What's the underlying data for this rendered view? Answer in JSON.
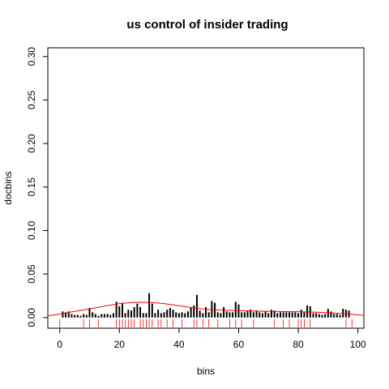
{
  "chart_data": {
    "type": "bar",
    "title": "us control of insider trading",
    "xlabel": "bins",
    "ylabel": "docbins",
    "xlim": [
      -4,
      102
    ],
    "ylim": [
      -0.0123,
      0.31
    ],
    "x_ticks": [
      0,
      20,
      40,
      60,
      80,
      100
    ],
    "x_tick_labels": [
      "0",
      "20",
      "40",
      "60",
      "80",
      "100"
    ],
    "y_ticks": [
      0.0,
      0.05,
      0.1,
      0.15,
      0.2,
      0.25,
      0.3
    ],
    "y_tick_labels": [
      "0.00",
      "0.05",
      "0.10",
      "0.15",
      "0.20",
      "0.25",
      "0.30"
    ],
    "grid": false,
    "series": [
      {
        "style": "histogram-spikes",
        "color": "#000000",
        "x": [
          1,
          2,
          3,
          4,
          5,
          6,
          7,
          8,
          9,
          10,
          11,
          12,
          13,
          14,
          15,
          16,
          17,
          18,
          19,
          20,
          21,
          22,
          23,
          24,
          25,
          26,
          27,
          28,
          29,
          30,
          31,
          32,
          33,
          34,
          35,
          36,
          37,
          38,
          39,
          40,
          41,
          42,
          43,
          44,
          45,
          46,
          47,
          48,
          49,
          50,
          51,
          52,
          53,
          54,
          55,
          56,
          57,
          58,
          59,
          60,
          61,
          62,
          63,
          64,
          65,
          66,
          67,
          68,
          69,
          70,
          71,
          72,
          73,
          74,
          75,
          76,
          77,
          78,
          79,
          80,
          81,
          82,
          83,
          84,
          85,
          86,
          87,
          88,
          89,
          90,
          91,
          92,
          93,
          94,
          95,
          96,
          97
        ],
        "values": [
          0.007,
          0.006,
          0.007,
          0.004,
          0.003,
          0.003,
          0.002,
          0.004,
          0.003,
          0.011,
          0.006,
          0.004,
          0.002,
          0.004,
          0.004,
          0.004,
          0.003,
          0.005,
          0.018,
          0.013,
          0.017,
          0.005,
          0.009,
          0.008,
          0.012,
          0.016,
          0.012,
          0.005,
          0.005,
          0.028,
          0.016,
          0.005,
          0.009,
          0.005,
          0.006,
          0.009,
          0.011,
          0.009,
          0.006,
          0.005,
          0.006,
          0.005,
          0.007,
          0.012,
          0.014,
          0.026,
          0.008,
          0.005,
          0.012,
          0.006,
          0.019,
          0.017,
          0.006,
          0.005,
          0.012,
          0.007,
          0.006,
          0.006,
          0.018,
          0.015,
          0.006,
          0.006,
          0.008,
          0.009,
          0.006,
          0.008,
          0.006,
          0.005,
          0.007,
          0.005,
          0.009,
          0.008,
          0.005,
          0.006,
          0.006,
          0.006,
          0.006,
          0.006,
          0.006,
          0.005,
          0.009,
          0.006,
          0.014,
          0.013,
          0.005,
          0.005,
          0.004,
          0.003,
          0.004,
          0.01,
          0.007,
          0.004,
          0.004,
          0.003,
          0.01,
          0.009,
          0.008
        ]
      },
      {
        "style": "smooth-curve",
        "color": "#ff0000",
        "x": [
          -4,
          0,
          5,
          10,
          15,
          20,
          25,
          30,
          35,
          40,
          45,
          50,
          55,
          60,
          65,
          70,
          75,
          80,
          85,
          90,
          95,
          102
        ],
        "values": [
          0.002,
          0.004,
          0.007,
          0.01,
          0.013,
          0.016,
          0.0175,
          0.0175,
          0.016,
          0.0135,
          0.011,
          0.009,
          0.0085,
          0.008,
          0.0075,
          0.007,
          0.0068,
          0.0067,
          0.0062,
          0.0055,
          0.0045,
          0.0025
        ]
      },
      {
        "style": "rug",
        "color": "#ff0000",
        "x": [
          0,
          8,
          10,
          13,
          19,
          20,
          21,
          22,
          23,
          24,
          25,
          27,
          28,
          29,
          30,
          31,
          33,
          34,
          36,
          38,
          41,
          45,
          46,
          48,
          50,
          53,
          57,
          59,
          61,
          65,
          72,
          75,
          77,
          80,
          81,
          82,
          84,
          96,
          98
        ]
      }
    ]
  }
}
